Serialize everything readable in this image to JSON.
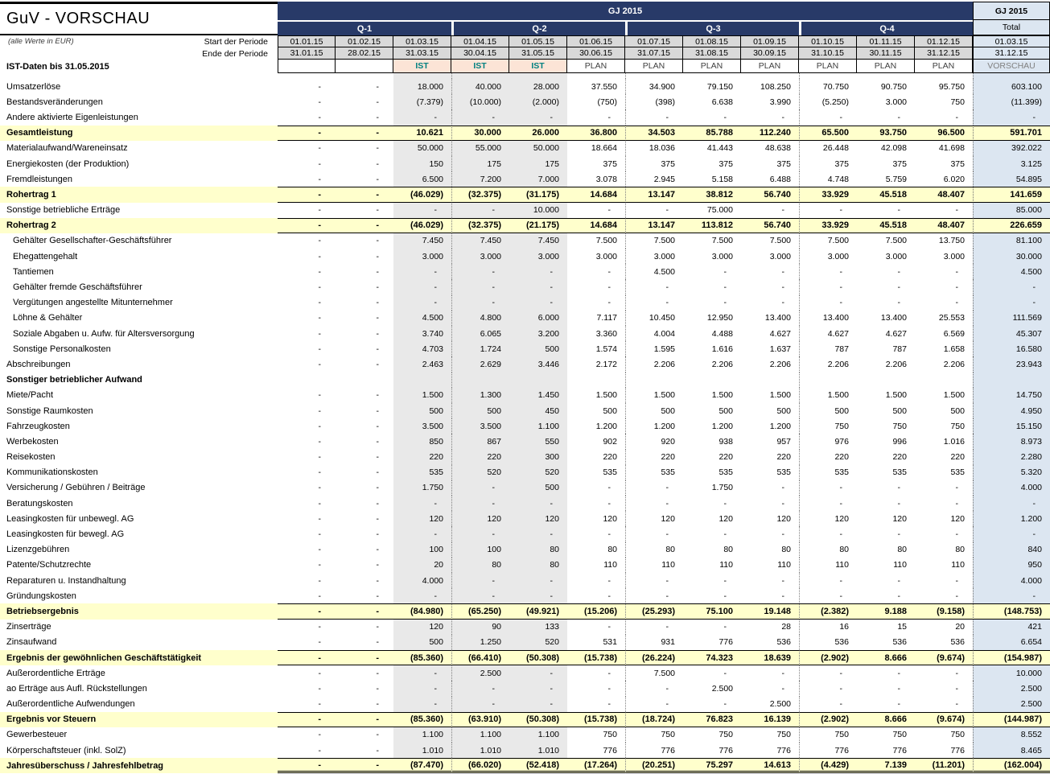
{
  "title": "GuV - VORSCHAU",
  "subtitle": "(alle Werte in EUR)",
  "ist_note": "IST-Daten bis 31.05.2015",
  "colors": {
    "header_navy": "#283A68",
    "summary_row_yellow": "#FFFFCC",
    "ist_column_gray": "#E9E9E9",
    "date_cell_gray": "#D9D9D9",
    "total_column_blue": "#DCE6F1",
    "ist_cell_peach": "#FCE4D6",
    "ist_text_teal": "#008080"
  },
  "header": {
    "year_label": "GJ 2015",
    "quarters": [
      "Q-1",
      "Q-2",
      "Q-3",
      "Q-4"
    ],
    "period_start_label": "Start der Periode",
    "period_end_label": "Ende der Periode",
    "start_dates": [
      "01.01.15",
      "01.02.15",
      "01.03.15",
      "01.04.15",
      "01.05.15",
      "01.06.15",
      "01.07.15",
      "01.08.15",
      "01.09.15",
      "01.10.15",
      "01.11.15",
      "01.12.15"
    ],
    "end_dates": [
      "31.01.15",
      "28.02.15",
      "31.03.15",
      "30.04.15",
      "31.05.15",
      "30.06.15",
      "31.07.15",
      "31.08.15",
      "30.09.15",
      "31.10.15",
      "30.11.15",
      "31.12.15"
    ],
    "status": [
      "",
      "",
      "IST",
      "IST",
      "IST",
      "PLAN",
      "PLAN",
      "PLAN",
      "PLAN",
      "PLAN",
      "PLAN",
      "PLAN"
    ],
    "total": {
      "year_label": "GJ 2015",
      "label": "Total",
      "start": "01.03.15",
      "end": "31.12.15",
      "status": "VORSCHAU"
    }
  },
  "rows": [
    {
      "label": "Umsatzerlöse",
      "type": "item",
      "indent": false,
      "values": [
        "-",
        "-",
        "18.000",
        "40.000",
        "28.000",
        "37.550",
        "34.900",
        "79.150",
        "108.250",
        "70.750",
        "90.750",
        "95.750"
      ],
      "total": "603.100"
    },
    {
      "label": "Bestandsveränderungen",
      "type": "item",
      "indent": false,
      "values": [
        "-",
        "-",
        "(7.379)",
        "(10.000)",
        "(2.000)",
        "(750)",
        "(398)",
        "6.638",
        "3.990",
        "(5.250)",
        "3.000",
        "750"
      ],
      "total": "(11.399)"
    },
    {
      "label": "Andere aktivierte Eigenleistungen",
      "type": "item",
      "indent": false,
      "values": [
        "-",
        "-",
        "-",
        "-",
        "-",
        "-",
        "-",
        "-",
        "-",
        "-",
        "-",
        "-"
      ],
      "total": "-"
    },
    {
      "label": "Gesamtleistung",
      "type": "total",
      "indent": false,
      "values": [
        "-",
        "-",
        "10.621",
        "30.000",
        "26.000",
        "36.800",
        "34.503",
        "85.788",
        "112.240",
        "65.500",
        "93.750",
        "96.500"
      ],
      "total": "591.701"
    },
    {
      "label": "Materialaufwand/Wareneinsatz",
      "type": "item",
      "indent": false,
      "values": [
        "-",
        "-",
        "50.000",
        "55.000",
        "50.000",
        "18.664",
        "18.036",
        "41.443",
        "48.638",
        "26.448",
        "42.098",
        "41.698"
      ],
      "total": "392.022"
    },
    {
      "label": "Energiekosten (der Produktion)",
      "type": "item",
      "indent": false,
      "values": [
        "-",
        "-",
        "150",
        "175",
        "175",
        "375",
        "375",
        "375",
        "375",
        "375",
        "375",
        "375"
      ],
      "total": "3.125"
    },
    {
      "label": "Fremdleistungen",
      "type": "item",
      "indent": false,
      "values": [
        "-",
        "-",
        "6.500",
        "7.200",
        "7.000",
        "3.078",
        "2.945",
        "5.158",
        "6.488",
        "4.748",
        "5.759",
        "6.020"
      ],
      "total": "54.895"
    },
    {
      "label": "Rohertrag 1",
      "type": "total",
      "indent": false,
      "values": [
        "-",
        "-",
        "(46.029)",
        "(32.375)",
        "(31.175)",
        "14.684",
        "13.147",
        "38.812",
        "56.740",
        "33.929",
        "45.518",
        "48.407"
      ],
      "total": "141.659"
    },
    {
      "label": "Sonstige betriebliche Erträge",
      "type": "item",
      "indent": false,
      "values": [
        "-",
        "-",
        "-",
        "-",
        "10.000",
        "-",
        "-",
        "75.000",
        "-",
        "-",
        "-",
        "-"
      ],
      "total": "85.000"
    },
    {
      "label": "Rohertrag 2",
      "type": "total",
      "indent": false,
      "values": [
        "-",
        "-",
        "(46.029)",
        "(32.375)",
        "(21.175)",
        "14.684",
        "13.147",
        "113.812",
        "56.740",
        "33.929",
        "45.518",
        "48.407"
      ],
      "total": "226.659"
    },
    {
      "label": "Gehälter Gesellschafter-Geschäftsführer",
      "type": "item",
      "indent": true,
      "values": [
        "-",
        "-",
        "7.450",
        "7.450",
        "7.450",
        "7.500",
        "7.500",
        "7.500",
        "7.500",
        "7.500",
        "7.500",
        "13.750"
      ],
      "total": "81.100"
    },
    {
      "label": "Ehegattengehalt",
      "type": "item",
      "indent": true,
      "values": [
        "-",
        "-",
        "3.000",
        "3.000",
        "3.000",
        "3.000",
        "3.000",
        "3.000",
        "3.000",
        "3.000",
        "3.000",
        "3.000"
      ],
      "total": "30.000"
    },
    {
      "label": "Tantiemen",
      "type": "item",
      "indent": true,
      "values": [
        "-",
        "-",
        "-",
        "-",
        "-",
        "-",
        "4.500",
        "-",
        "-",
        "-",
        "-",
        "-"
      ],
      "total": "4.500"
    },
    {
      "label": "Gehälter fremde Geschäftsführer",
      "type": "item",
      "indent": true,
      "values": [
        "-",
        "-",
        "-",
        "-",
        "-",
        "-",
        "-",
        "-",
        "-",
        "-",
        "-",
        "-"
      ],
      "total": "-"
    },
    {
      "label": "Vergütungen angestellte Mitunternehmer",
      "type": "item",
      "indent": true,
      "values": [
        "-",
        "-",
        "-",
        "-",
        "-",
        "-",
        "-",
        "-",
        "-",
        "-",
        "-",
        "-"
      ],
      "total": "-"
    },
    {
      "label": "Löhne & Gehälter",
      "type": "item",
      "indent": true,
      "values": [
        "-",
        "-",
        "4.500",
        "4.800",
        "6.000",
        "7.117",
        "10.450",
        "12.950",
        "13.400",
        "13.400",
        "13.400",
        "25.553"
      ],
      "total": "111.569"
    },
    {
      "label": "Soziale Abgaben u. Aufw. für Altersversorgung",
      "type": "item",
      "indent": true,
      "values": [
        "-",
        "-",
        "3.740",
        "6.065",
        "3.200",
        "3.360",
        "4.004",
        "4.488",
        "4.627",
        "4.627",
        "4.627",
        "6.569"
      ],
      "total": "45.307"
    },
    {
      "label": "Sonstige Personalkosten",
      "type": "item",
      "indent": true,
      "values": [
        "-",
        "-",
        "4.703",
        "1.724",
        "500",
        "1.574",
        "1.595",
        "1.616",
        "1.637",
        "787",
        "787",
        "1.658"
      ],
      "total": "16.580"
    },
    {
      "label": "Abschreibungen",
      "type": "item",
      "indent": false,
      "values": [
        "-",
        "-",
        "2.463",
        "2.629",
        "3.446",
        "2.172",
        "2.206",
        "2.206",
        "2.206",
        "2.206",
        "2.206",
        "2.206"
      ],
      "total": "23.943"
    },
    {
      "label": "Sonstiger betrieblicher Aufwand",
      "type": "section",
      "indent": false,
      "values": [
        "",
        "",
        "",
        "",
        "",
        "",
        "",
        "",
        "",
        "",
        "",
        ""
      ],
      "total": ""
    },
    {
      "label": "Miete/Pacht",
      "type": "item",
      "indent": false,
      "values": [
        "-",
        "-",
        "1.500",
        "1.300",
        "1.450",
        "1.500",
        "1.500",
        "1.500",
        "1.500",
        "1.500",
        "1.500",
        "1.500"
      ],
      "total": "14.750"
    },
    {
      "label": "Sonstige Raumkosten",
      "type": "item",
      "indent": false,
      "values": [
        "-",
        "-",
        "500",
        "500",
        "450",
        "500",
        "500",
        "500",
        "500",
        "500",
        "500",
        "500"
      ],
      "total": "4.950"
    },
    {
      "label": "Fahrzeugkosten",
      "type": "item",
      "indent": false,
      "values": [
        "-",
        "-",
        "3.500",
        "3.500",
        "1.100",
        "1.200",
        "1.200",
        "1.200",
        "1.200",
        "750",
        "750",
        "750"
      ],
      "total": "15.150"
    },
    {
      "label": "Werbekosten",
      "type": "item",
      "indent": false,
      "values": [
        "-",
        "-",
        "850",
        "867",
        "550",
        "902",
        "920",
        "938",
        "957",
        "976",
        "996",
        "1.016"
      ],
      "total": "8.973"
    },
    {
      "label": "Reisekosten",
      "type": "item",
      "indent": false,
      "values": [
        "-",
        "-",
        "220",
        "220",
        "300",
        "220",
        "220",
        "220",
        "220",
        "220",
        "220",
        "220"
      ],
      "total": "2.280"
    },
    {
      "label": "Kommunikationskosten",
      "type": "item",
      "indent": false,
      "values": [
        "-",
        "-",
        "535",
        "520",
        "520",
        "535",
        "535",
        "535",
        "535",
        "535",
        "535",
        "535"
      ],
      "total": "5.320"
    },
    {
      "label": "Versicherung / Gebühren / Beiträge",
      "type": "item",
      "indent": false,
      "values": [
        "-",
        "-",
        "1.750",
        "-",
        "500",
        "-",
        "-",
        "1.750",
        "-",
        "-",
        "-",
        "-"
      ],
      "total": "4.000"
    },
    {
      "label": "Beratungskosten",
      "type": "item",
      "indent": false,
      "values": [
        "-",
        "-",
        "-",
        "-",
        "-",
        "-",
        "-",
        "-",
        "-",
        "-",
        "-",
        "-"
      ],
      "total": "-"
    },
    {
      "label": "Leasingkosten für unbewegl. AG",
      "type": "item",
      "indent": false,
      "values": [
        "-",
        "-",
        "120",
        "120",
        "120",
        "120",
        "120",
        "120",
        "120",
        "120",
        "120",
        "120"
      ],
      "total": "1.200"
    },
    {
      "label": "Leasingkosten für bewegl. AG",
      "type": "item",
      "indent": false,
      "values": [
        "-",
        "-",
        "-",
        "-",
        "-",
        "-",
        "-",
        "-",
        "-",
        "-",
        "-",
        "-"
      ],
      "total": "-"
    },
    {
      "label": "Lizenzgebühren",
      "type": "item",
      "indent": false,
      "values": [
        "-",
        "-",
        "100",
        "100",
        "80",
        "80",
        "80",
        "80",
        "80",
        "80",
        "80",
        "80"
      ],
      "total": "840"
    },
    {
      "label": "Patente/Schutzrechte",
      "type": "item",
      "indent": false,
      "values": [
        "-",
        "-",
        "20",
        "80",
        "80",
        "110",
        "110",
        "110",
        "110",
        "110",
        "110",
        "110"
      ],
      "total": "950"
    },
    {
      "label": "Reparaturen u. Instandhaltung",
      "type": "item",
      "indent": false,
      "values": [
        "-",
        "-",
        "4.000",
        "-",
        "-",
        "-",
        "-",
        "-",
        "-",
        "-",
        "-",
        "-"
      ],
      "total": "4.000"
    },
    {
      "label": "Gründungskosten",
      "type": "item",
      "indent": false,
      "values": [
        "-",
        "-",
        "-",
        "-",
        "-",
        "-",
        "-",
        "-",
        "-",
        "-",
        "-",
        "-"
      ],
      "total": "-"
    },
    {
      "label": "Betriebsergebnis",
      "type": "total",
      "indent": false,
      "values": [
        "-",
        "-",
        "(84.980)",
        "(65.250)",
        "(49.921)",
        "(15.206)",
        "(25.293)",
        "75.100",
        "19.148",
        "(2.382)",
        "9.188",
        "(9.158)"
      ],
      "total": "(148.753)"
    },
    {
      "label": "Zinserträge",
      "type": "item",
      "indent": false,
      "values": [
        "-",
        "-",
        "120",
        "90",
        "133",
        "-",
        "-",
        "-",
        "28",
        "16",
        "15",
        "20"
      ],
      "total": "421"
    },
    {
      "label": "Zinsaufwand",
      "type": "item",
      "indent": false,
      "values": [
        "-",
        "-",
        "500",
        "1.250",
        "520",
        "531",
        "931",
        "776",
        "536",
        "536",
        "536",
        "536"
      ],
      "total": "6.654"
    },
    {
      "label": "Ergebnis der gewöhnlichen Geschäftstätigkeit",
      "type": "total",
      "indent": false,
      "values": [
        "-",
        "-",
        "(85.360)",
        "(66.410)",
        "(50.308)",
        "(15.738)",
        "(26.224)",
        "74.323",
        "18.639",
        "(2.902)",
        "8.666",
        "(9.674)"
      ],
      "total": "(154.987)"
    },
    {
      "label": "Außerordentliche Erträge",
      "type": "item",
      "indent": false,
      "values": [
        "-",
        "-",
        "-",
        "2.500",
        "-",
        "-",
        "7.500",
        "-",
        "-",
        "-",
        "-",
        "-"
      ],
      "total": "10.000"
    },
    {
      "label": "ao Erträge aus Aufl. Rückstellungen",
      "type": "item",
      "indent": false,
      "values": [
        "-",
        "-",
        "-",
        "-",
        "-",
        "-",
        "-",
        "2.500",
        "-",
        "-",
        "-",
        "-"
      ],
      "total": "2.500"
    },
    {
      "label": "Außerordentliche Aufwendungen",
      "type": "item",
      "indent": false,
      "values": [
        "-",
        "-",
        "-",
        "-",
        "-",
        "-",
        "-",
        "-",
        "2.500",
        "-",
        "-",
        "-"
      ],
      "total": "2.500"
    },
    {
      "label": "Ergebnis vor Steuern",
      "type": "total",
      "indent": false,
      "values": [
        "-",
        "-",
        "(85.360)",
        "(63.910)",
        "(50.308)",
        "(15.738)",
        "(18.724)",
        "76.823",
        "16.139",
        "(2.902)",
        "8.666",
        "(9.674)"
      ],
      "total": "(144.987)"
    },
    {
      "label": "Gewerbesteuer",
      "type": "item",
      "indent": false,
      "values": [
        "-",
        "-",
        "1.100",
        "1.100",
        "1.100",
        "750",
        "750",
        "750",
        "750",
        "750",
        "750",
        "750"
      ],
      "total": "8.552"
    },
    {
      "label": "Körperschaftsteuer (inkl. SolZ)",
      "type": "item",
      "indent": false,
      "values": [
        "-",
        "-",
        "1.010",
        "1.010",
        "1.010",
        "776",
        "776",
        "776",
        "776",
        "776",
        "776",
        "776"
      ],
      "total": "8.465"
    },
    {
      "label": "Jahresüberschuss / Jahresfehlbetrag",
      "type": "total",
      "indent": false,
      "last": true,
      "values": [
        "-",
        "-",
        "(87.470)",
        "(66.020)",
        "(52.418)",
        "(17.264)",
        "(20.251)",
        "75.297",
        "14.613",
        "(4.429)",
        "7.139",
        "(11.201)"
      ],
      "total": "(162.004)"
    }
  ]
}
